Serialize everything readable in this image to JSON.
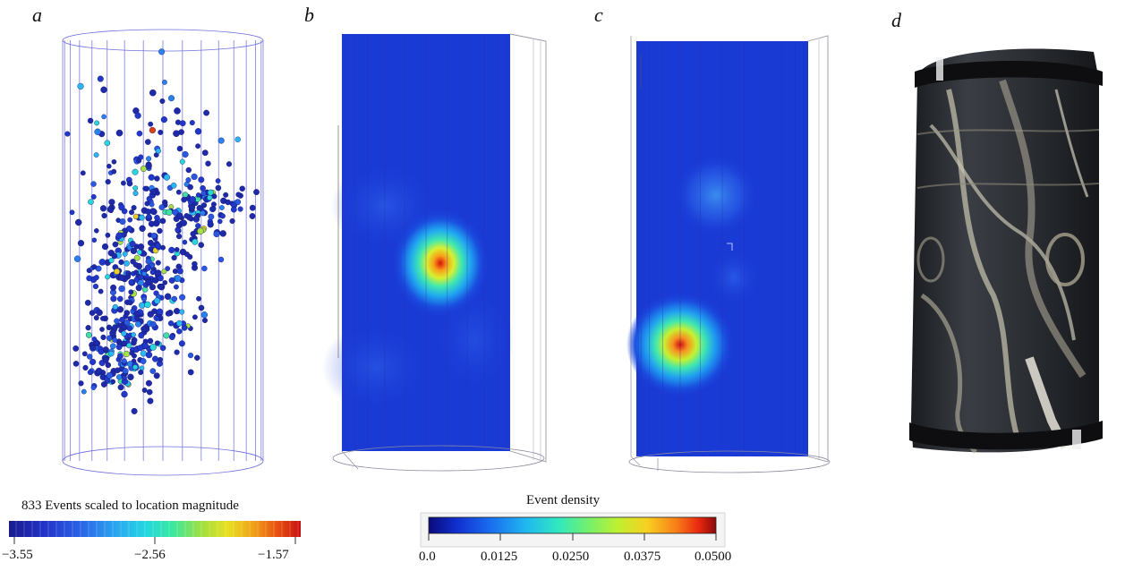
{
  "panels": {
    "a": "a",
    "b": "b",
    "c": "c",
    "d": "d"
  },
  "magnitude_colorbar": {
    "title": "833 Events scaled to location magnitude",
    "ticks": [
      "−3.55",
      "−2.56",
      "−1.57"
    ],
    "colors": [
      "#1a1a8c",
      "#2233c8",
      "#2a66e8",
      "#2aa8f0",
      "#22d8e0",
      "#3ae8a0",
      "#a0e040",
      "#e8e020",
      "#f0a018",
      "#e85010",
      "#c81010"
    ]
  },
  "density_colorbar": {
    "title": "Event density",
    "ticks": [
      "0.0",
      "0.0125",
      "0.0250",
      "0.0375",
      "0.0500"
    ],
    "colors": [
      "#0a0a7a",
      "#1030d0",
      "#1a70f0",
      "#20b8f0",
      "#30e8c0",
      "#70f070",
      "#c0f030",
      "#f8d020",
      "#f88018",
      "#e82810",
      "#8a0a0a"
    ]
  }
}
